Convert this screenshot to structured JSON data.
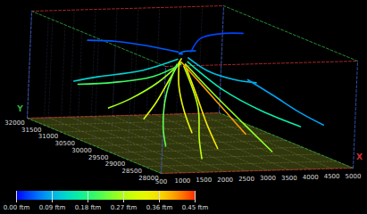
{
  "chart_data": {
    "type": "streamline",
    "xlabel": "X",
    "ylabel": "Y",
    "xlim": [
      500,
      5000
    ],
    "xticks": [
      500,
      1000,
      1500,
      2000,
      2500,
      3000,
      3500,
      4000,
      4500,
      5000
    ],
    "ylim": [
      28000,
      32000
    ],
    "yticks": [
      28000,
      28500,
      29000,
      29500,
      30000,
      30500,
      31000,
      31500,
      32000
    ],
    "zlim": [
      0,
      1
    ],
    "grid": true,
    "color_bar": {
      "range": [
        0,
        0.45
      ],
      "ticks": [
        {
          "value": 0,
          "label": "0.00 ftm"
        },
        {
          "value": 0.09,
          "label": "0.09 ftm"
        },
        {
          "value": 0.18,
          "label": "0.18 ftm"
        },
        {
          "value": 0.27,
          "label": "0.27 ftm"
        },
        {
          "value": 0.36,
          "label": "0.36 ftm"
        },
        {
          "value": 0.45,
          "label": "0.45 ftm"
        }
      ]
    },
    "streamlines": [
      {
        "speed": 0.3,
        "points": [
          [
            2700,
            30300,
            0.75
          ],
          [
            2200,
            30000,
            0.6
          ],
          [
            1600,
            29600,
            0.45
          ],
          [
            1000,
            29200,
            0.35
          ]
        ]
      },
      {
        "speed": 0.26,
        "points": [
          [
            2650,
            30250,
            0.72
          ],
          [
            2100,
            30200,
            0.55
          ],
          [
            1400,
            30100,
            0.42
          ],
          [
            800,
            30000,
            0.35
          ]
        ]
      },
      {
        "speed": 0.2,
        "points": [
          [
            2700,
            30300,
            0.7
          ],
          [
            2300,
            30600,
            0.55
          ],
          [
            1700,
            31000,
            0.45
          ],
          [
            1100,
            31300,
            0.4
          ]
        ]
      },
      {
        "speed": 0.35,
        "points": [
          [
            2750,
            30250,
            0.7
          ],
          [
            2600,
            29700,
            0.5
          ],
          [
            2400,
            29100,
            0.3
          ],
          [
            2200,
            28500,
            0.15
          ]
        ]
      },
      {
        "speed": 0.25,
        "points": [
          [
            2800,
            30300,
            0.7
          ],
          [
            3000,
            29700,
            0.5
          ],
          [
            3200,
            29000,
            0.3
          ],
          [
            3400,
            28400,
            0.12
          ]
        ]
      },
      {
        "speed": 0.15,
        "points": [
          [
            2850,
            30300,
            0.72
          ],
          [
            3400,
            29900,
            0.5
          ],
          [
            4000,
            29500,
            0.35
          ],
          [
            4600,
            29100,
            0.25
          ]
        ]
      },
      {
        "speed": 0.1,
        "points": [
          [
            2900,
            30350,
            0.75
          ],
          [
            3500,
            30500,
            0.6
          ],
          [
            4200,
            30600,
            0.5
          ],
          [
            4800,
            30700,
            0.45
          ]
        ]
      },
      {
        "speed": 0.05,
        "points": [
          [
            2800,
            30400,
            0.78
          ],
          [
            3200,
            31000,
            0.7
          ],
          [
            3700,
            31500,
            0.65
          ],
          [
            4300,
            31900,
            0.6
          ]
        ]
      },
      {
        "speed": 0.04,
        "points": [
          [
            2700,
            30400,
            0.8
          ],
          [
            2500,
            31000,
            0.78
          ],
          [
            2200,
            31600,
            0.75
          ],
          [
            1800,
            31950,
            0.72
          ]
        ]
      },
      {
        "speed": 0.22,
        "points": [
          [
            2600,
            30300,
            0.7
          ],
          [
            1900,
            29700,
            0.5
          ],
          [
            1300,
            29000,
            0.3
          ],
          [
            900,
            28400,
            0.2
          ]
        ]
      },
      {
        "speed": 0.28,
        "points": [
          [
            2750,
            30280,
            0.68
          ],
          [
            2500,
            29500,
            0.4
          ],
          [
            2000,
            28800,
            0.2
          ],
          [
            1600,
            28200,
            0.1
          ]
        ]
      },
      {
        "speed": 0.12,
        "points": [
          [
            2650,
            30350,
            0.74
          ],
          [
            1900,
            30500,
            0.62
          ],
          [
            1100,
            30700,
            0.55
          ],
          [
            600,
            30800,
            0.5
          ]
        ]
      },
      {
        "speed": 0.08,
        "points": [
          [
            4200,
            30200,
            0.55
          ],
          [
            4500,
            29800,
            0.45
          ],
          [
            4750,
            29300,
            0.35
          ],
          [
            4900,
            28800,
            0.3
          ]
        ]
      },
      {
        "speed": 0.4,
        "points": [
          [
            2700,
            30300,
            0.72
          ],
          [
            2900,
            29900,
            0.55
          ],
          [
            2950,
            29300,
            0.4
          ],
          [
            3000,
            28700,
            0.25
          ]
        ]
      },
      {
        "speed": 0.33,
        "points": [
          [
            2650,
            30300,
            0.72
          ],
          [
            2350,
            29900,
            0.55
          ],
          [
            2100,
            29400,
            0.38
          ],
          [
            1900,
            28900,
            0.25
          ]
        ]
      },
      {
        "speed": 0.03,
        "points": [
          [
            3000,
            30400,
            0.8
          ],
          [
            3600,
            30900,
            0.85
          ],
          [
            4300,
            31200,
            0.85
          ],
          [
            5000,
            31400,
            0.82
          ]
        ]
      }
    ]
  }
}
